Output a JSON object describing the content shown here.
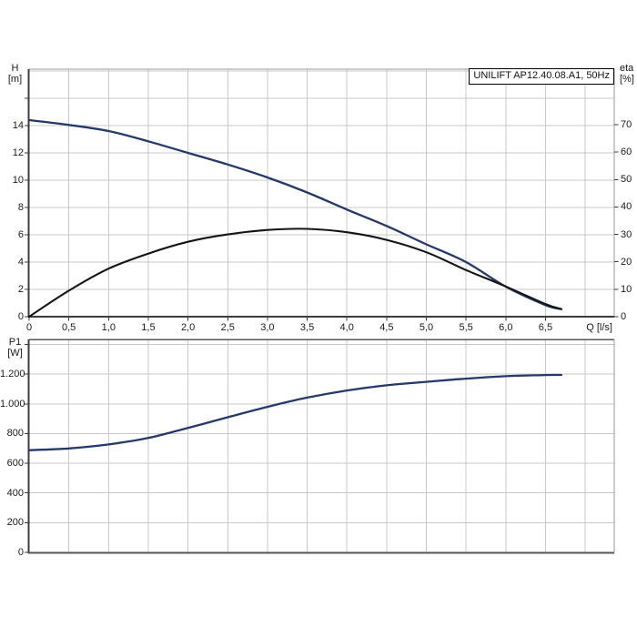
{
  "labels": {
    "title": "UNILIFT AP12.40.08.A1, 50Hz",
    "h_name": "H",
    "h_unit": "[m]",
    "eta_name": "eta",
    "eta_unit": "[%]",
    "q_label": "Q [l/s]",
    "p1_name": "P1",
    "p1_unit": "[W]"
  },
  "colors": {
    "curve_navy": "#24386b",
    "curve_black": "#141414",
    "grid": "#c9c9c9",
    "frame": "#999999",
    "axis_dark": "#3c3c3c",
    "text": "#1a1a1a"
  },
  "axes": {
    "q": {
      "ticks": [
        {
          "v": 0,
          "label": "0"
        },
        {
          "v": 0.5,
          "label": "0,5"
        },
        {
          "v": 1,
          "label": "1,0"
        },
        {
          "v": 1.5,
          "label": "1,5"
        },
        {
          "v": 2,
          "label": "2,0"
        },
        {
          "v": 2.5,
          "label": "2,5"
        },
        {
          "v": 3,
          "label": "3,0"
        },
        {
          "v": 3.5,
          "label": "3,5"
        },
        {
          "v": 4,
          "label": "4,0"
        },
        {
          "v": 4.5,
          "label": "4,5"
        },
        {
          "v": 5,
          "label": "5,0"
        },
        {
          "v": 5.5,
          "label": "5,5"
        },
        {
          "v": 6,
          "label": "6,0"
        },
        {
          "v": 6.5,
          "label": "6,5"
        }
      ],
      "grid_values": [
        0.5,
        1,
        1.5,
        2,
        2.5,
        3,
        3.5,
        4,
        4.5,
        5,
        5.5,
        6,
        6.5,
        7
      ]
    },
    "h": {
      "ticks": [
        {
          "v": 0,
          "label": "0"
        },
        {
          "v": 2,
          "label": "2"
        },
        {
          "v": 4,
          "label": "4"
        },
        {
          "v": 6,
          "label": "6"
        },
        {
          "v": 8,
          "label": "8"
        },
        {
          "v": 10,
          "label": "10"
        },
        {
          "v": 12,
          "label": "12"
        },
        {
          "v": 14,
          "label": "14"
        },
        {
          "v": 16,
          "label": ""
        }
      ],
      "grid_values": [
        2,
        4,
        6,
        8,
        10,
        12,
        14,
        16,
        18
      ]
    },
    "eta": {
      "ticks": [
        {
          "v": 0,
          "label": "0"
        },
        {
          "v": 10,
          "label": "10"
        },
        {
          "v": 20,
          "label": "20"
        },
        {
          "v": 30,
          "label": "30"
        },
        {
          "v": 40,
          "label": "40"
        },
        {
          "v": 50,
          "label": "50"
        },
        {
          "v": 60,
          "label": "60"
        },
        {
          "v": 70,
          "label": "70"
        }
      ]
    },
    "p1": {
      "ticks": [
        {
          "v": 0,
          "label": "0"
        },
        {
          "v": 200,
          "label": "200"
        },
        {
          "v": 400,
          "label": "400"
        },
        {
          "v": 600,
          "label": "600"
        },
        {
          "v": 800,
          "label": "800"
        },
        {
          "v": 1000,
          "label": "1.000"
        },
        {
          "v": 1200,
          "label": "1.200"
        },
        {
          "v": 1400,
          "label": ""
        }
      ],
      "grid_values": [
        200,
        400,
        600,
        800,
        1000,
        1200,
        1400
      ]
    }
  },
  "chart_data": [
    {
      "type": "line",
      "title": "UNILIFT AP12.40.08.A1, 50Hz",
      "xlabel": "Q [l/s]",
      "ylabel_left": "H [m]",
      "ylabel_right": "eta [%]",
      "xlim": [
        0,
        7.4
      ],
      "ylim_left": [
        0,
        18.1
      ],
      "ylim_right": [
        0,
        90.2
      ],
      "grid": true,
      "x": [
        0,
        0.5,
        1,
        1.5,
        2,
        2.5,
        3,
        3.5,
        4,
        4.5,
        5,
        5.5,
        6,
        6.5,
        6.7
      ],
      "series": [
        {
          "name": "H",
          "axis": "left",
          "color": "#24386b",
          "values": [
            14.4,
            14.05,
            13.6,
            12.85,
            12.0,
            11.15,
            10.2,
            9.1,
            7.85,
            6.65,
            5.3,
            4.0,
            2.2,
            0.85,
            0.55
          ]
        },
        {
          "name": "eta",
          "axis": "right",
          "color": "#141414",
          "values": [
            0,
            9.5,
            17.5,
            23.0,
            27.3,
            30.0,
            31.6,
            32.0,
            30.8,
            28.0,
            23.5,
            17.0,
            11.0,
            4.6,
            2.8
          ]
        }
      ]
    },
    {
      "type": "line",
      "title": "",
      "xlabel": "",
      "ylabel_left": "P1 [W]",
      "xlim": [
        0,
        7.4
      ],
      "ylim_left": [
        0,
        1434
      ],
      "grid": true,
      "x": [
        0,
        0.5,
        1,
        1.5,
        2,
        2.5,
        3,
        3.5,
        4,
        4.5,
        5,
        5.5,
        6,
        6.5,
        6.7
      ],
      "series": [
        {
          "name": "P1",
          "axis": "left",
          "color": "#24386b",
          "values": [
            688,
            700,
            727,
            770,
            838,
            910,
            980,
            1042,
            1090,
            1125,
            1148,
            1170,
            1186,
            1194,
            1195
          ]
        }
      ]
    }
  ]
}
